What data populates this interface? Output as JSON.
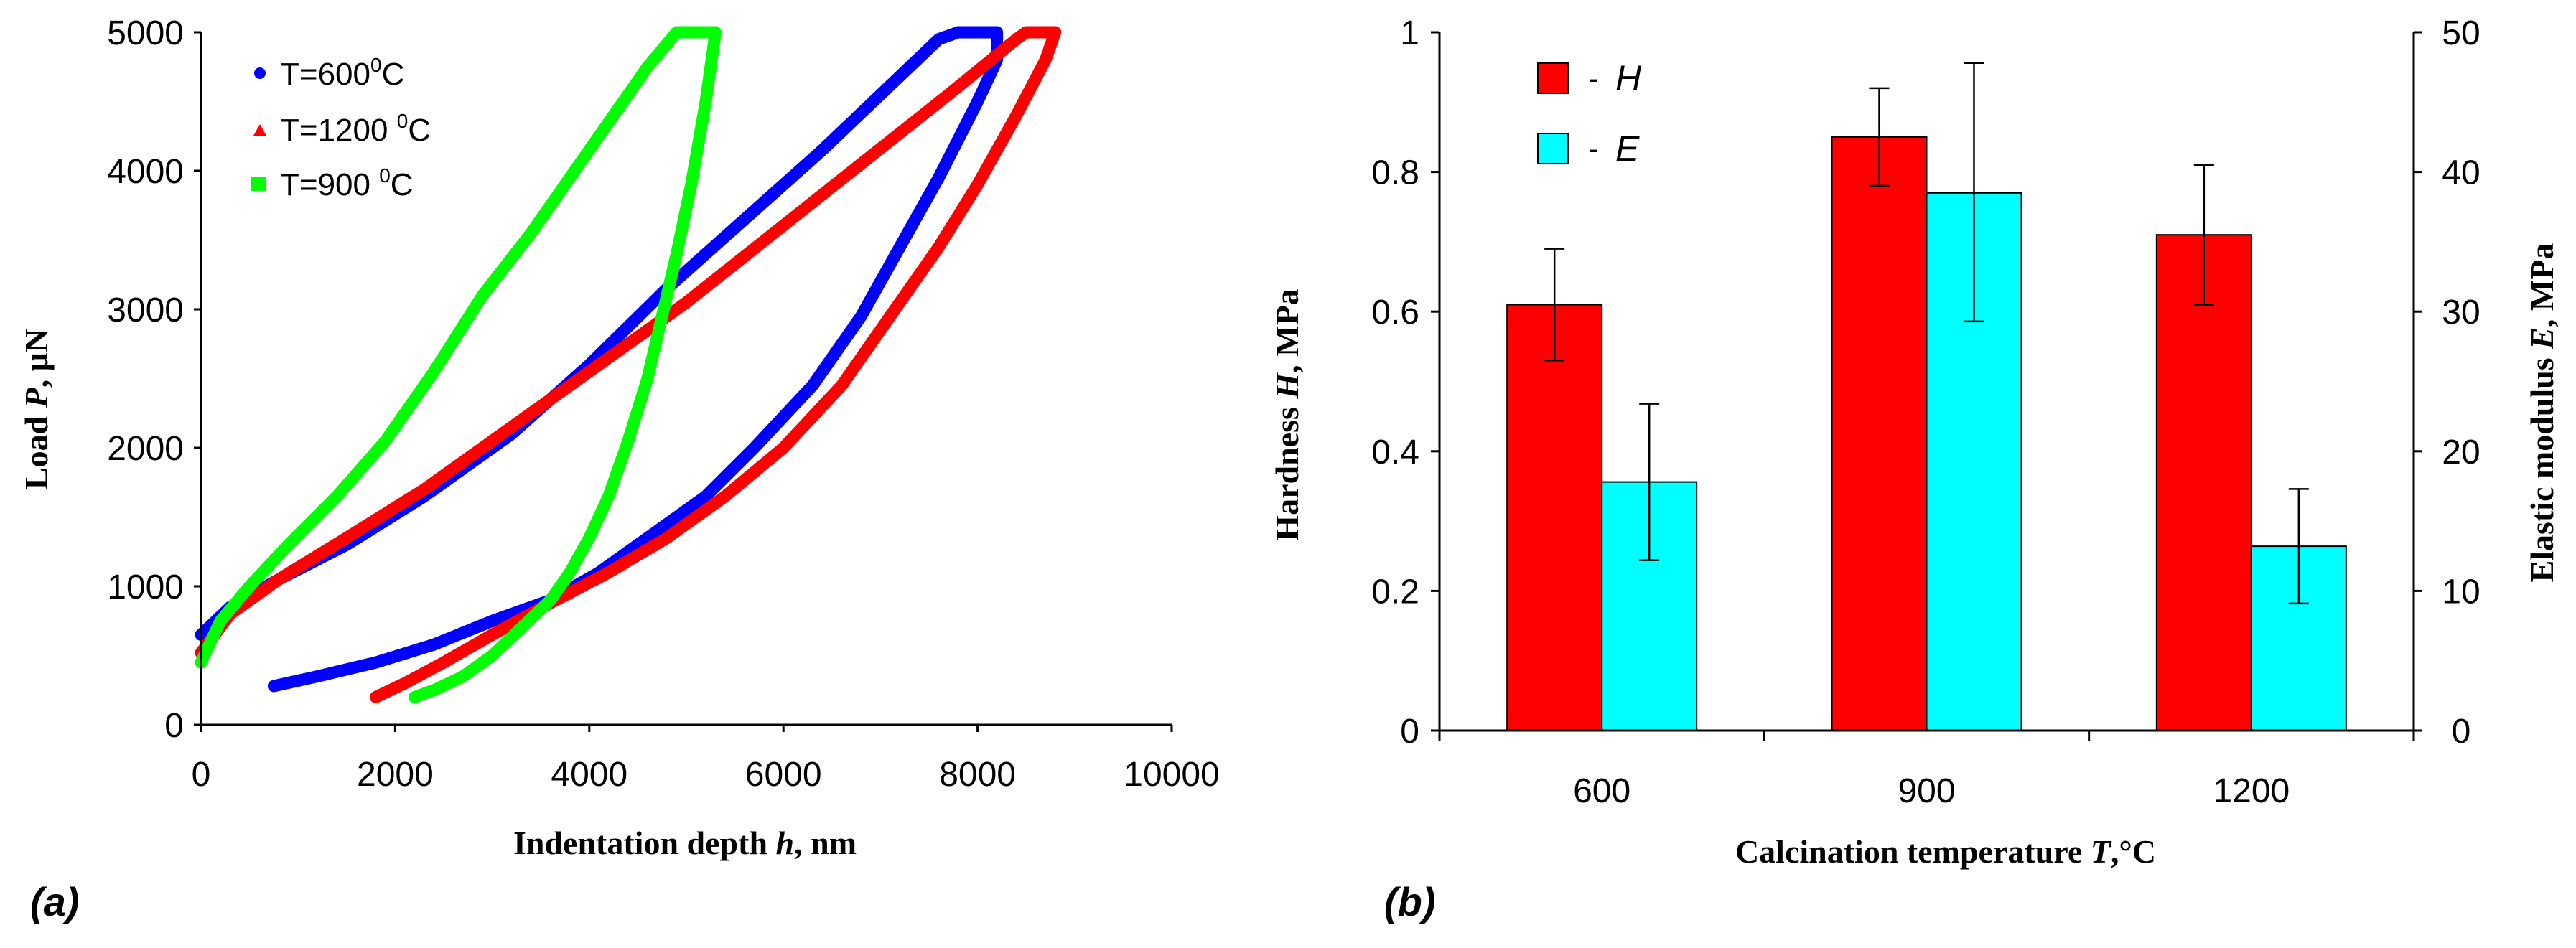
{
  "chart_data": [
    {
      "panel_label": "(a)",
      "type": "line",
      "xlabel": "Indentation depth",
      "xlabel_var": "h",
      "xlabel_unit": ", nm",
      "ylabel": "Load",
      "ylabel_var": "P",
      "ylabel_unit": ", μN",
      "xlim": [
        0,
        10000
      ],
      "ylim": [
        0,
        5000
      ],
      "xticks": [
        0,
        2000,
        4000,
        6000,
        8000,
        10000
      ],
      "yticks": [
        0,
        1000,
        2000,
        3000,
        4000,
        5000
      ],
      "legend_position": "top-left",
      "series": [
        {
          "name": "T=600°C",
          "label_prefix": "T=600",
          "label_sup": "0",
          "label_suffix": "C",
          "color": "#0000ff",
          "marker": "circle",
          "x": [
            0,
            300,
            800,
            1500,
            2300,
            3200,
            4000,
            4800,
            5600,
            6400,
            7000,
            7600,
            7800,
            8200,
            8200,
            8000,
            7600,
            7200,
            6800,
            6300,
            5700,
            5200,
            4600,
            4100,
            3600,
            3000,
            2400,
            1800,
            1200,
            750
          ],
          "y": [
            650,
            850,
            1050,
            1300,
            1650,
            2100,
            2600,
            3150,
            3650,
            4150,
            4550,
            4950,
            5000,
            5000,
            4800,
            4500,
            3950,
            3450,
            2950,
            2450,
            2000,
            1650,
            1350,
            1100,
            900,
            750,
            580,
            450,
            350,
            280
          ]
        },
        {
          "name": "T=1200 °C",
          "label_prefix": "T=1200 ",
          "label_sup": "0",
          "label_suffix": "C",
          "color": "#ff0000",
          "marker": "triangle",
          "x": [
            0,
            300,
            800,
            1500,
            2300,
            3200,
            4100,
            5000,
            5900,
            6800,
            7700,
            8400,
            8500,
            8800,
            8700,
            8400,
            8000,
            7600,
            7100,
            6600,
            6000,
            5400,
            4800,
            4200,
            3600,
            3000,
            2500,
            2100,
            1800
          ],
          "y": [
            520,
            800,
            1050,
            1350,
            1700,
            2150,
            2600,
            3050,
            3550,
            4050,
            4550,
            4950,
            5000,
            5000,
            4800,
            4400,
            3900,
            3450,
            2950,
            2450,
            2000,
            1650,
            1350,
            1100,
            880,
            650,
            450,
            300,
            200
          ]
        },
        {
          "name": "T=900 °C",
          "label_prefix": "T=900 ",
          "label_sup": "0",
          "label_suffix": "C",
          "color": "#00ff00",
          "marker": "square",
          "x": [
            0,
            200,
            500,
            900,
            1400,
            1900,
            2400,
            2900,
            3400,
            3900,
            4300,
            4600,
            4900,
            5000,
            5300,
            5200,
            5050,
            4900,
            4750,
            4600,
            4400,
            4200,
            4000,
            3800,
            3600,
            3300,
            3000,
            2700,
            2400,
            2200
          ],
          "y": [
            450,
            750,
            1000,
            1300,
            1650,
            2050,
            2550,
            3100,
            3550,
            4050,
            4450,
            4750,
            5000,
            5000,
            5000,
            4500,
            3900,
            3400,
            2950,
            2500,
            2050,
            1650,
            1350,
            1100,
            900,
            700,
            500,
            350,
            250,
            200
          ]
        }
      ]
    },
    {
      "panel_label": "(b)",
      "type": "bar",
      "xlabel": "Calcination temperature",
      "xlabel_var": "T",
      "xlabel_unit": ",°C",
      "ylabel_left": "Hardness",
      "ylabel_left_var": "H",
      "ylabel_left_unit": ", MPa",
      "ylabel_right": "Elastic modulus",
      "ylabel_right_var": "E",
      "ylabel_right_unit": ", MPa",
      "categories": [
        "600",
        "900",
        "1200"
      ],
      "ylim_left": [
        0,
        1
      ],
      "ylim_right": [
        0,
        50
      ],
      "yticks_left": [
        "0",
        "0.2",
        "0.4",
        "0.6",
        "0.8",
        "1"
      ],
      "yticks_right": [
        "0",
        "10",
        "20",
        "30",
        "40",
        "50"
      ],
      "legend_position": "top-left",
      "series": [
        {
          "name": "H",
          "legend_label": "-",
          "legend_var": "H",
          "axis": "left",
          "color": "#ff0000",
          "values": [
            0.61,
            0.85,
            0.71
          ],
          "error_low": [
            0.53,
            0.78,
            0.61
          ],
          "error_high": [
            0.69,
            0.92,
            0.81
          ]
        },
        {
          "name": "E",
          "legend_label": "-",
          "legend_var": "E",
          "axis": "right",
          "color": "#00ffff",
          "values": [
            17.8,
            38.5,
            13.2
          ],
          "error_low": [
            12.2,
            29.3,
            9.1
          ],
          "error_high": [
            23.4,
            47.8,
            17.3
          ]
        }
      ]
    }
  ]
}
